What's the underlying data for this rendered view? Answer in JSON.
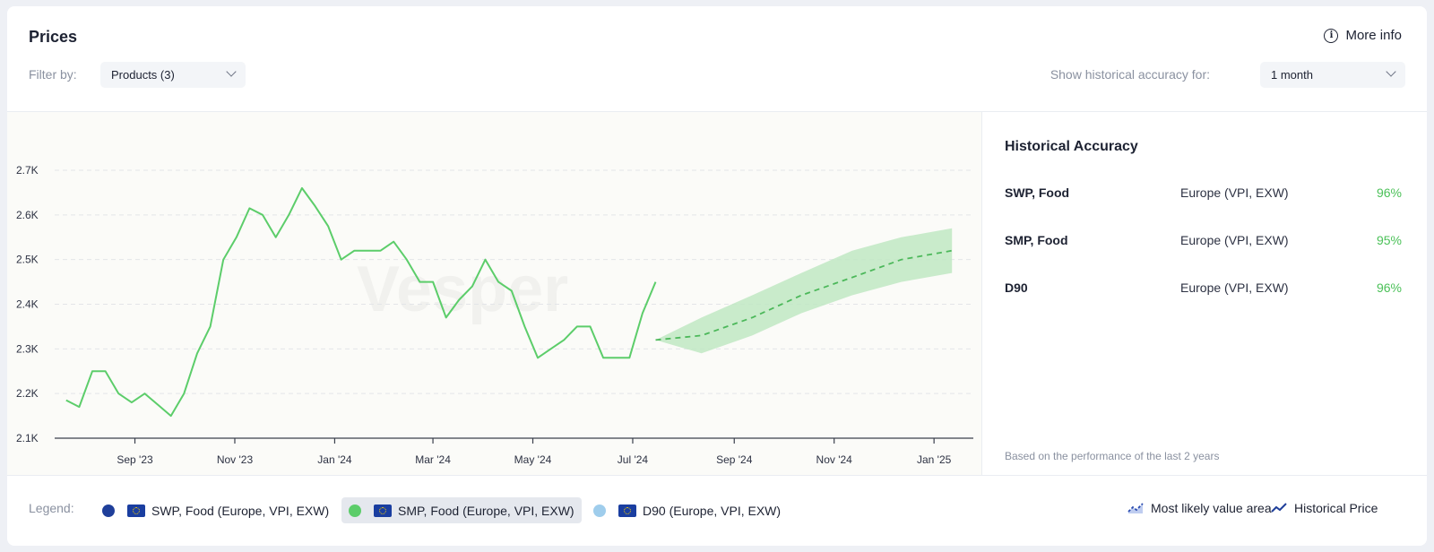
{
  "header": {
    "title": "Prices",
    "more_info": "More info",
    "filter_label": "Filter by:",
    "products_select": "Products (3)",
    "accuracy_label": "Show historical accuracy for:",
    "accuracy_select": "1 month"
  },
  "chart_data": {
    "type": "line",
    "watermark": "Vesper",
    "y_ticks": [
      "2.7K",
      "2.6K",
      "2.5K",
      "2.4K",
      "2.3K",
      "2.2K",
      "2.1K"
    ],
    "ylim": [
      2100,
      2700
    ],
    "x_ticks": [
      "Sep '23",
      "Nov '23",
      "Jan '24",
      "Mar '24",
      "May '24",
      "Jul '24",
      "Sep '24",
      "Nov '24",
      "Jan '25"
    ],
    "xlim": [
      "2023-07-14",
      "2025-01-25"
    ],
    "grid": "horizontal dashed",
    "colors": {
      "historical": "#5ccd6a",
      "band": "#bfe8c3"
    },
    "series": [
      {
        "name": "SMP, Food (Europe, VPI, EXW)",
        "x": [
          "2023-07-21",
          "2023-07-29",
          "2023-08-06",
          "2023-08-14",
          "2023-08-22",
          "2023-08-30",
          "2023-09-07",
          "2023-09-15",
          "2023-09-23",
          "2023-10-01",
          "2023-10-09",
          "2023-10-17",
          "2023-10-25",
          "2023-11-02",
          "2023-11-10",
          "2023-11-18",
          "2023-11-26",
          "2023-12-04",
          "2023-12-12",
          "2023-12-20",
          "2023-12-28",
          "2024-01-05",
          "2024-01-13",
          "2024-01-21",
          "2024-01-29",
          "2024-02-06",
          "2024-02-14",
          "2024-02-22",
          "2024-03-01",
          "2024-03-09",
          "2024-03-17",
          "2024-03-25",
          "2024-04-02",
          "2024-04-10",
          "2024-04-18",
          "2024-04-26",
          "2024-05-04",
          "2024-05-12",
          "2024-05-20",
          "2024-05-28",
          "2024-06-05",
          "2024-06-13",
          "2024-06-21",
          "2024-06-29",
          "2024-07-07",
          "2024-07-15"
        ],
        "values": [
          2185,
          2170,
          2250,
          2250,
          2200,
          2180,
          2200,
          2175,
          2150,
          2200,
          2290,
          2350,
          2500,
          2550,
          2615,
          2600,
          2550,
          2600,
          2660,
          2620,
          2575,
          2500,
          2520,
          2520,
          2520,
          2540,
          2500,
          2450,
          2450,
          2370,
          2410,
          2440,
          2500,
          2450,
          2430,
          2350,
          2280,
          2300,
          2320,
          2350,
          2350,
          2280,
          2280,
          2280,
          2380,
          2450
        ]
      },
      {
        "name": "Forecast",
        "x": [
          "2024-07-15",
          "2024-08-12",
          "2024-09-12",
          "2024-10-12",
          "2024-11-12",
          "2024-12-12",
          "2025-01-12"
        ],
        "values": [
          2320,
          2330,
          2370,
          2420,
          2460,
          2500,
          2520
        ],
        "upper": [
          2320,
          2370,
          2420,
          2470,
          2520,
          2550,
          2570
        ],
        "lower": [
          2320,
          2290,
          2330,
          2380,
          2420,
          2450,
          2470
        ]
      }
    ]
  },
  "accuracy": {
    "title": "Historical Accuracy",
    "rows": [
      {
        "product": "SWP, Food",
        "region": "Europe (VPI, EXW)",
        "value": "96%"
      },
      {
        "product": "SMP, Food",
        "region": "Europe (VPI, EXW)",
        "value": "95%"
      },
      {
        "product": "D90",
        "region": "Europe (VPI, EXW)",
        "value": "96%"
      }
    ],
    "footnote": "Based on the performance of the last 2 years"
  },
  "legend": {
    "label": "Legend:",
    "items": [
      {
        "label": "SWP, Food (Europe, VPI, EXW)",
        "color": "#1f3f9a"
      },
      {
        "label": "SMP, Food (Europe, VPI, EXW)",
        "color": "#5ccd6a"
      },
      {
        "label": "D90 (Europe, VPI, EXW)",
        "color": "#9fcdec"
      }
    ],
    "most_likely": "Most likely value area",
    "historical": "Historical Price"
  }
}
